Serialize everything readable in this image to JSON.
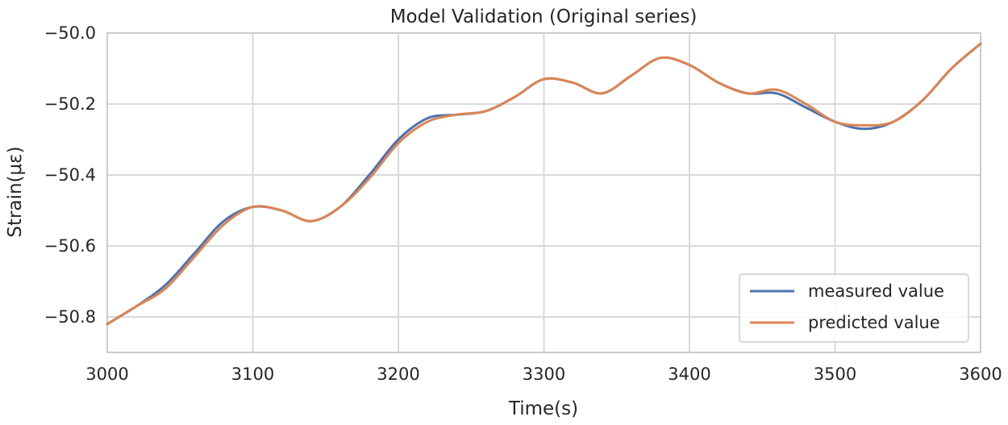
{
  "chart_data": {
    "type": "line",
    "title": "Model Validation (Original series)",
    "xlabel": "Time(s)",
    "ylabel": "Strain(με)",
    "xlim": [
      3000,
      3600
    ],
    "ylim": [
      -50.9,
      -50.0
    ],
    "xticks": [
      3000,
      3100,
      3200,
      3300,
      3400,
      3500,
      3600
    ],
    "xtick_labels": [
      "3000",
      "3100",
      "3200",
      "3300",
      "3400",
      "3500",
      "3600"
    ],
    "yticks": [
      -50.0,
      -50.2,
      -50.4,
      -50.6,
      -50.8
    ],
    "ytick_labels": [
      "−50.0",
      "−50.2",
      "−50.4",
      "−50.6",
      "−50.8"
    ],
    "grid": true,
    "legend_position": "lower-right",
    "series": [
      {
        "name": "measured value",
        "color": "#4c72b0",
        "x": [
          3000,
          3020,
          3040,
          3060,
          3080,
          3100,
          3120,
          3140,
          3160,
          3180,
          3200,
          3220,
          3240,
          3260,
          3280,
          3300,
          3320,
          3340,
          3360,
          3380,
          3400,
          3420,
          3440,
          3460,
          3480,
          3500,
          3520,
          3540,
          3560,
          3580,
          3600
        ],
        "y": [
          -50.82,
          -50.77,
          -50.71,
          -50.62,
          -50.53,
          -50.49,
          -50.5,
          -50.53,
          -50.49,
          -50.4,
          -50.3,
          -50.24,
          -50.23,
          -50.22,
          -50.18,
          -50.13,
          -50.14,
          -50.17,
          -50.12,
          -50.07,
          -50.09,
          -50.14,
          -50.17,
          -50.17,
          -50.21,
          -50.25,
          -50.27,
          -50.25,
          -50.19,
          -50.1,
          -50.03
        ]
      },
      {
        "name": "predicted value",
        "color": "#dd8452",
        "x": [
          3000,
          3020,
          3040,
          3060,
          3080,
          3100,
          3120,
          3140,
          3160,
          3180,
          3200,
          3220,
          3240,
          3260,
          3280,
          3300,
          3320,
          3340,
          3360,
          3380,
          3400,
          3420,
          3440,
          3460,
          3480,
          3500,
          3520,
          3540,
          3560,
          3580,
          3600
        ],
        "y": [
          -50.82,
          -50.77,
          -50.72,
          -50.63,
          -50.54,
          -50.49,
          -50.5,
          -50.53,
          -50.49,
          -50.41,
          -50.31,
          -50.25,
          -50.23,
          -50.22,
          -50.18,
          -50.13,
          -50.14,
          -50.17,
          -50.12,
          -50.07,
          -50.09,
          -50.14,
          -50.17,
          -50.16,
          -50.2,
          -50.25,
          -50.26,
          -50.25,
          -50.19,
          -50.1,
          -50.03
        ]
      }
    ]
  }
}
